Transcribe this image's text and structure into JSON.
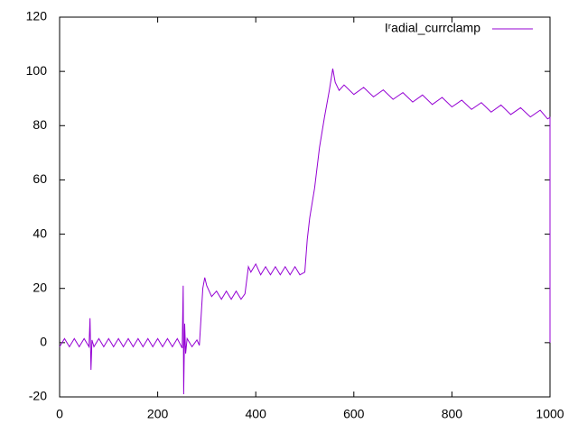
{
  "chart_data": {
    "type": "line",
    "xlim": [
      0,
      1000
    ],
    "xticks": [
      0,
      200,
      400,
      600,
      800,
      1000
    ],
    "ylim": [
      -20,
      120
    ],
    "yticks": [
      -20,
      0,
      20,
      40,
      60,
      80,
      100,
      120
    ],
    "legend": "top-right",
    "series": [
      {
        "name": "Iʳadial_currclamp",
        "color": "#9400d3",
        "x": [
          0,
          10,
          20,
          30,
          40,
          50,
          60,
          62,
          64,
          66,
          70,
          80,
          90,
          100,
          110,
          120,
          130,
          140,
          150,
          160,
          170,
          180,
          190,
          200,
          210,
          220,
          230,
          240,
          250,
          252,
          253,
          255,
          257,
          260,
          270,
          280,
          285,
          292,
          296,
          300,
          305,
          310,
          320,
          330,
          340,
          350,
          360,
          370,
          378,
          385,
          390,
          400,
          410,
          420,
          430,
          440,
          450,
          460,
          470,
          480,
          490,
          500,
          505,
          510,
          520,
          530,
          540,
          550,
          557,
          562,
          570,
          580,
          600,
          620,
          640,
          660,
          680,
          700,
          720,
          740,
          760,
          780,
          800,
          820,
          840,
          860,
          880,
          900,
          920,
          940,
          960,
          980,
          995,
          1000,
          1000
        ],
        "values": [
          -1.5,
          1.5,
          -1.5,
          1.5,
          -1.5,
          1.5,
          -1.5,
          9,
          -10,
          1,
          -1.5,
          1.5,
          -1.5,
          1.5,
          -1.5,
          1.5,
          -1.5,
          1.5,
          -1.5,
          1.5,
          -1.5,
          1.5,
          -1.5,
          1.5,
          -1.5,
          1.5,
          -1.5,
          1.5,
          -2,
          21,
          -19,
          7,
          -4,
          1.5,
          -1.5,
          1,
          -1,
          20,
          24,
          21,
          19,
          17,
          19,
          16,
          19,
          16,
          19,
          16,
          18,
          28,
          26,
          29,
          25,
          28,
          25,
          28,
          25,
          28,
          25,
          28,
          25,
          26,
          38,
          46,
          57,
          72,
          83,
          93,
          101,
          96,
          93,
          95,
          91.5,
          94.1,
          90.6,
          93.2,
          89.7,
          92.2,
          88.7,
          91.3,
          87.8,
          90.4,
          86.9,
          89.4,
          86,
          88.5,
          85,
          87.6,
          84.1,
          86.6,
          83.2,
          85.7,
          82.5,
          83,
          0
        ]
      }
    ]
  }
}
